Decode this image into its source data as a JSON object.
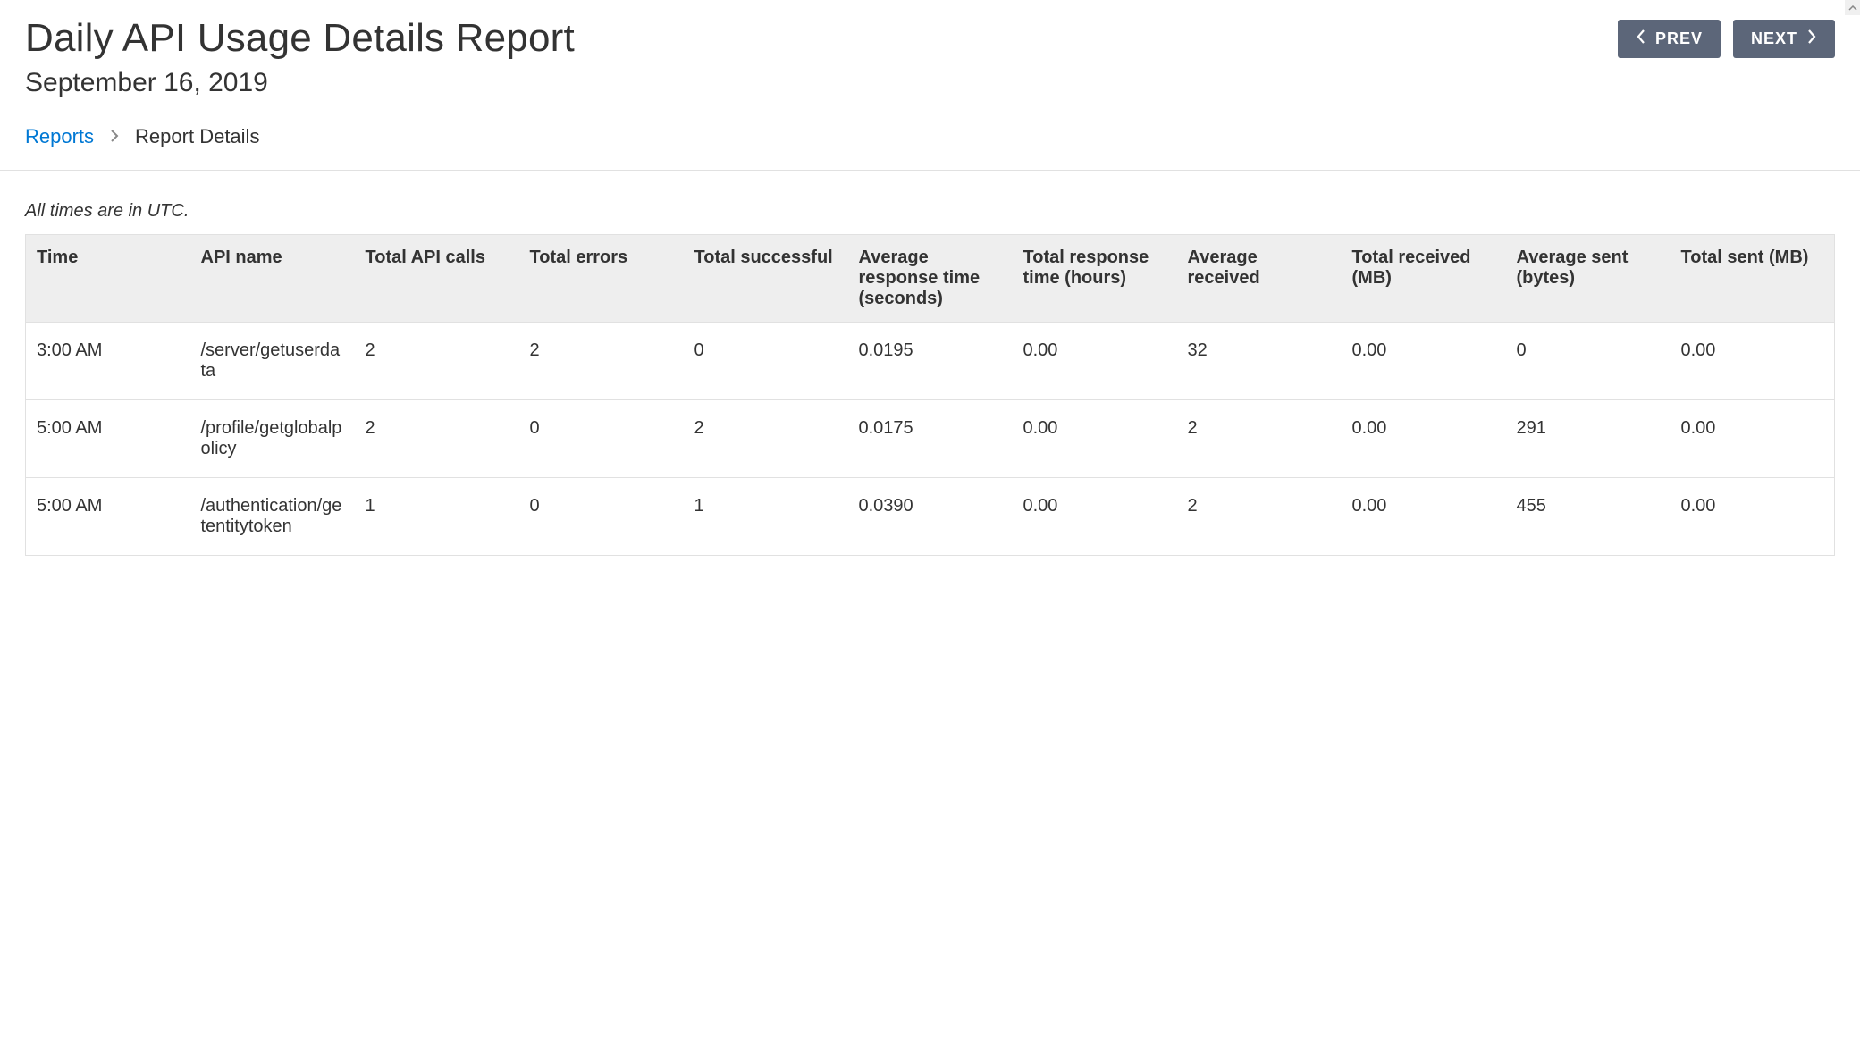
{
  "header": {
    "title": "Daily API Usage Details Report",
    "subtitle": "September 16, 2019",
    "prev_label": "PREV",
    "next_label": "NEXT"
  },
  "breadcrumb": {
    "root_label": "Reports",
    "current_label": "Report Details"
  },
  "note": "All times are in UTC.",
  "colors": {
    "button_bg": "#5c6679",
    "button_text": "#ffffff",
    "link": "#0078d4",
    "text": "#333333",
    "header_bg": "#eeeeee",
    "border": "#e1e1e1",
    "background": "#ffffff"
  },
  "table": {
    "type": "table",
    "columns": [
      {
        "key": "time",
        "label": "Time",
        "width_pct": 9
      },
      {
        "key": "api_name",
        "label": "API name",
        "width_pct": 9
      },
      {
        "key": "total_calls",
        "label": "Total API calls",
        "width_pct": 9
      },
      {
        "key": "total_errors",
        "label": "Total errors",
        "width_pct": 9
      },
      {
        "key": "total_successful",
        "label": "Total successful",
        "width_pct": 9
      },
      {
        "key": "avg_response_sec",
        "label": "Average response time (seconds)",
        "width_pct": 9
      },
      {
        "key": "total_response_hrs",
        "label": "Total response time (hours)",
        "width_pct": 9
      },
      {
        "key": "avg_received",
        "label": "Average received",
        "width_pct": 9
      },
      {
        "key": "total_received_mb",
        "label": "Total received (MB)",
        "width_pct": 9
      },
      {
        "key": "avg_sent_bytes",
        "label": "Average sent (bytes)",
        "width_pct": 9
      },
      {
        "key": "total_sent_mb",
        "label": "Total sent (MB)",
        "width_pct": 9
      }
    ],
    "rows": [
      {
        "time": "3:00 AM",
        "api_name": "/server/getuserdata",
        "total_calls": "2",
        "total_errors": "2",
        "total_successful": "0",
        "avg_response_sec": "0.0195",
        "total_response_hrs": "0.00",
        "avg_received": "32",
        "total_received_mb": "0.00",
        "avg_sent_bytes": "0",
        "total_sent_mb": "0.00"
      },
      {
        "time": "5:00 AM",
        "api_name": "/profile/getglobalpolicy",
        "total_calls": "2",
        "total_errors": "0",
        "total_successful": "2",
        "avg_response_sec": "0.0175",
        "total_response_hrs": "0.00",
        "avg_received": "2",
        "total_received_mb": "0.00",
        "avg_sent_bytes": "291",
        "total_sent_mb": "0.00"
      },
      {
        "time": "5:00 AM",
        "api_name": "/authentication/getentitytoken",
        "total_calls": "1",
        "total_errors": "0",
        "total_successful": "1",
        "avg_response_sec": "0.0390",
        "total_response_hrs": "0.00",
        "avg_received": "2",
        "total_received_mb": "0.00",
        "avg_sent_bytes": "455",
        "total_sent_mb": "0.00"
      }
    ]
  }
}
